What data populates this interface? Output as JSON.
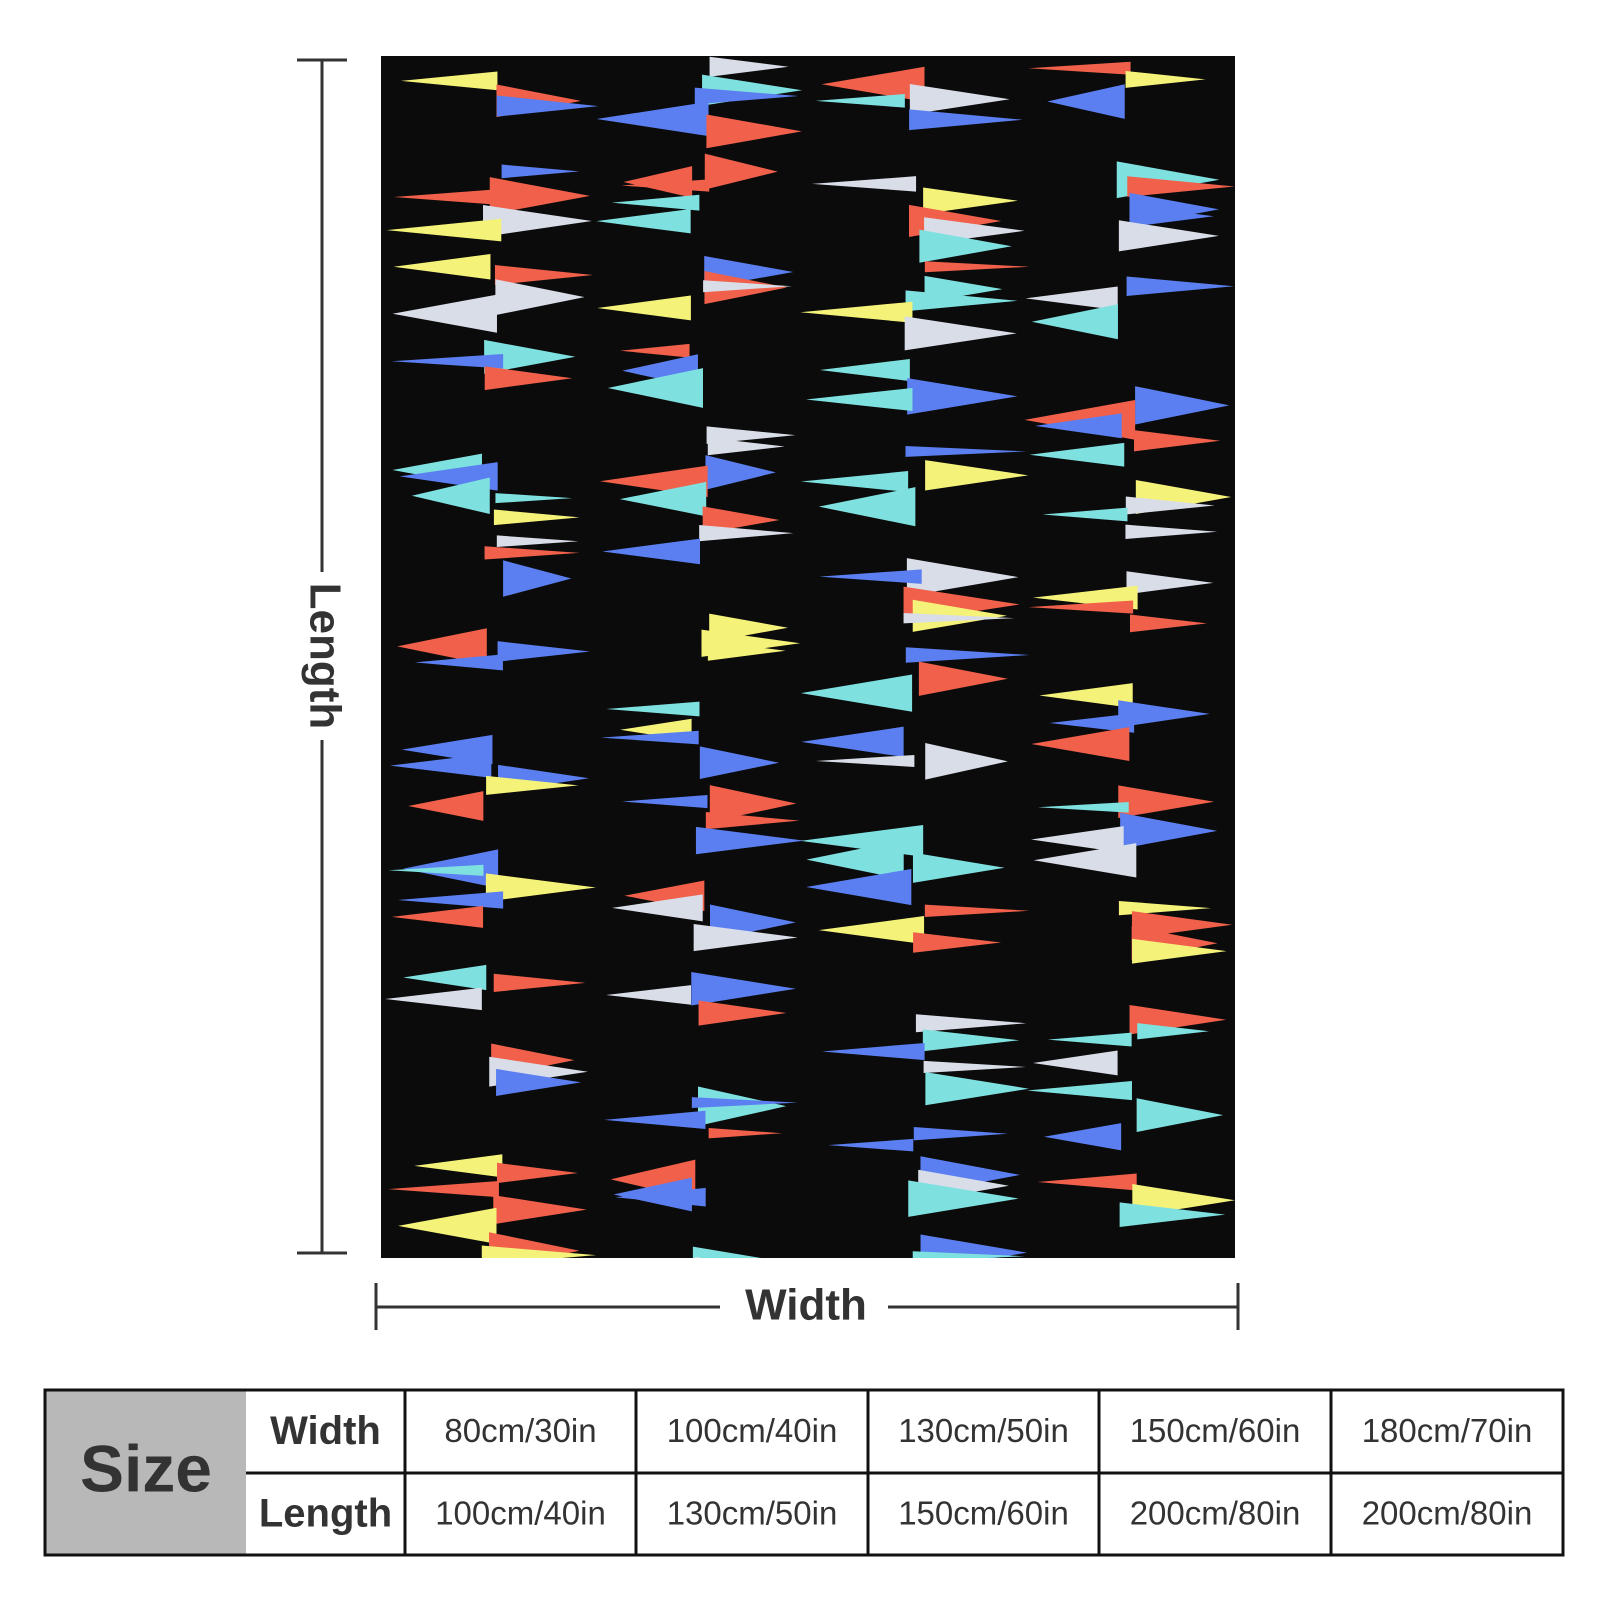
{
  "dimensions": {
    "length_label": "Length",
    "width_label": "Width"
  },
  "table": {
    "size_label": "Size",
    "rows": [
      [
        "Width",
        "80cm/30in",
        "100cm/40in",
        "130cm/50in",
        "150cm/60in",
        "180cm/70in"
      ],
      [
        "Length",
        "100cm/40in",
        "130cm/50in",
        "150cm/60in",
        "200cm/80in",
        "200cm/80in"
      ]
    ]
  }
}
